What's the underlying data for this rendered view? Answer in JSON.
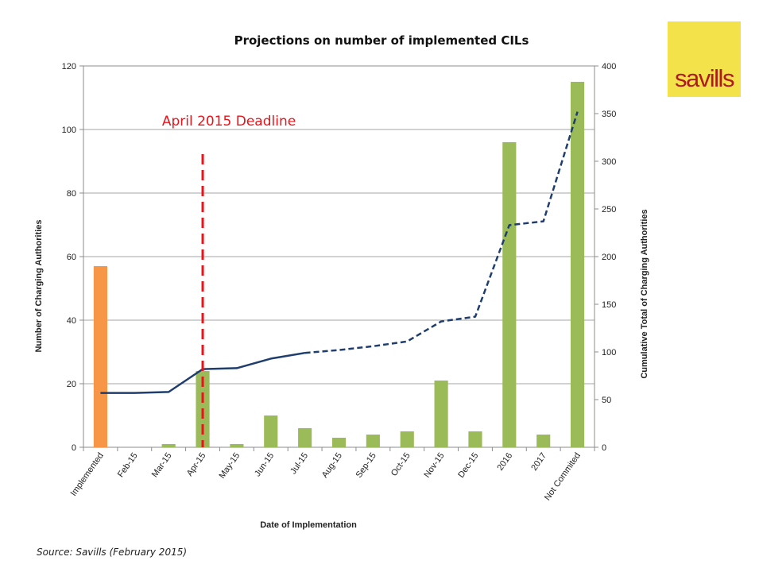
{
  "logo": {
    "text": "savills",
    "bg": "#f4e24a",
    "color": "#b01920"
  },
  "footer": {
    "source": "Source: Savills (February 2015)"
  },
  "chart_data": {
    "type": "bar",
    "title": "Projections on number of implemented CILs",
    "xlabel": "Date of Implementation",
    "ylabel": "Number of Charging Authorities",
    "y2label": "Cumulative Total of Charging Authorities",
    "categories": [
      "Implemented",
      "Feb-15",
      "Mar-15",
      "Apr-15",
      "May-15",
      "Jun-15",
      "Jul-15",
      "Aug-15",
      "Sep-15",
      "Oct-15",
      "Nov-15",
      "Dec-15",
      "2016",
      "2017",
      "Not Commited"
    ],
    "ylim": [
      0,
      120
    ],
    "yticks": [
      0,
      20,
      40,
      60,
      80,
      100,
      120
    ],
    "y2lim": [
      0,
      400
    ],
    "y2ticks": [
      0,
      50,
      100,
      150,
      200,
      250,
      300,
      350,
      400
    ],
    "grid": true,
    "bars": {
      "values": [
        57,
        0,
        1,
        24,
        1,
        10,
        6,
        3,
        4,
        5,
        21,
        5,
        96,
        4,
        115
      ],
      "colors": [
        "#f79646",
        "#9bbb59",
        "#9bbb59",
        "#9bbb59",
        "#9bbb59",
        "#9bbb59",
        "#9bbb59",
        "#9bbb59",
        "#9bbb59",
        "#9bbb59",
        "#9bbb59",
        "#9bbb59",
        "#9bbb59",
        "#9bbb59",
        "#9bbb59"
      ]
    },
    "cumulative": {
      "axis": "right",
      "values": [
        57,
        57,
        58,
        82,
        83,
        93,
        99,
        102,
        106,
        111,
        132,
        137,
        233,
        237,
        352
      ],
      "solid_through": "Jul-15",
      "color": "#1f3e6e"
    },
    "annotation": {
      "text": "April 2015 Deadline",
      "at_category": "Apr-15",
      "color": "#e8141b"
    }
  }
}
